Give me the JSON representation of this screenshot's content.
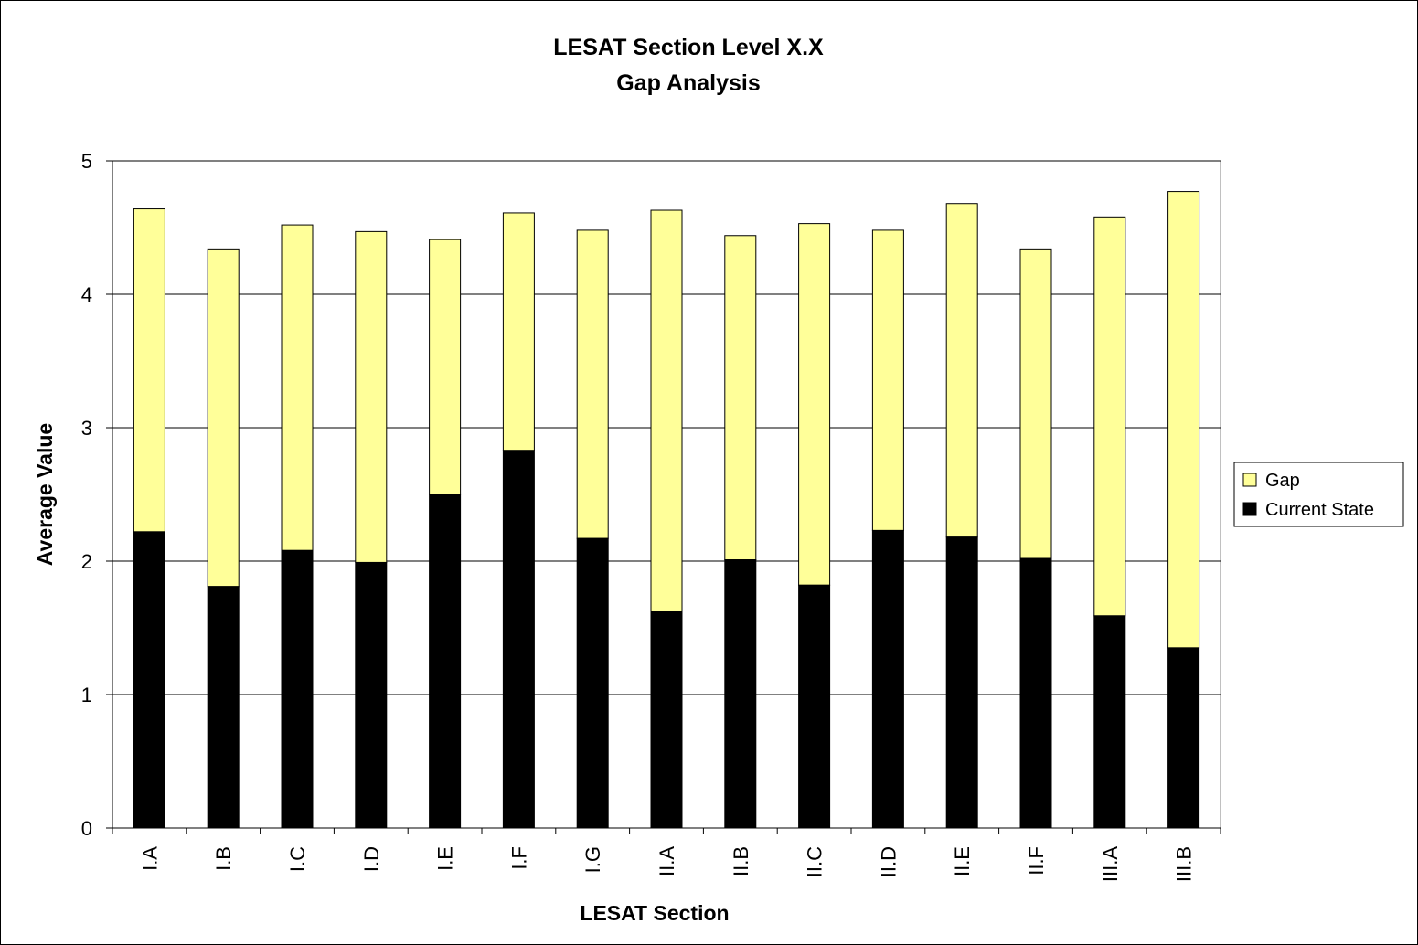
{
  "chart_data": {
    "type": "bar",
    "stacked": true,
    "title": [
      "LESAT Section Level X.X",
      "Gap Analysis"
    ],
    "xlabel": "LESAT Section",
    "ylabel": "Average Value",
    "ylim": [
      0,
      5
    ],
    "yticks": [
      "0",
      "1",
      "2",
      "3",
      "4",
      "5"
    ],
    "grid": true,
    "legend_position": "right",
    "categories": [
      "I.A",
      "I.B",
      "I.C",
      "I.D",
      "I.E",
      "I.F",
      "I.G",
      "II.A",
      "II.B",
      "II.C",
      "II.D",
      "II.E",
      "II.F",
      "III.A",
      "III.B"
    ],
    "series": [
      {
        "name": "Current State",
        "color": "#000000",
        "values": [
          2.22,
          1.81,
          2.08,
          1.99,
          2.5,
          2.83,
          2.17,
          1.62,
          2.01,
          1.82,
          2.23,
          2.18,
          2.02,
          1.59,
          1.35
        ]
      },
      {
        "name": "Gap",
        "color": "#ffff99",
        "values": [
          2.42,
          2.53,
          2.44,
          2.48,
          1.91,
          1.78,
          2.31,
          3.01,
          2.43,
          2.71,
          2.25,
          2.5,
          2.32,
          2.99,
          3.42
        ]
      }
    ],
    "legend_order": [
      "Gap",
      "Current State"
    ]
  }
}
